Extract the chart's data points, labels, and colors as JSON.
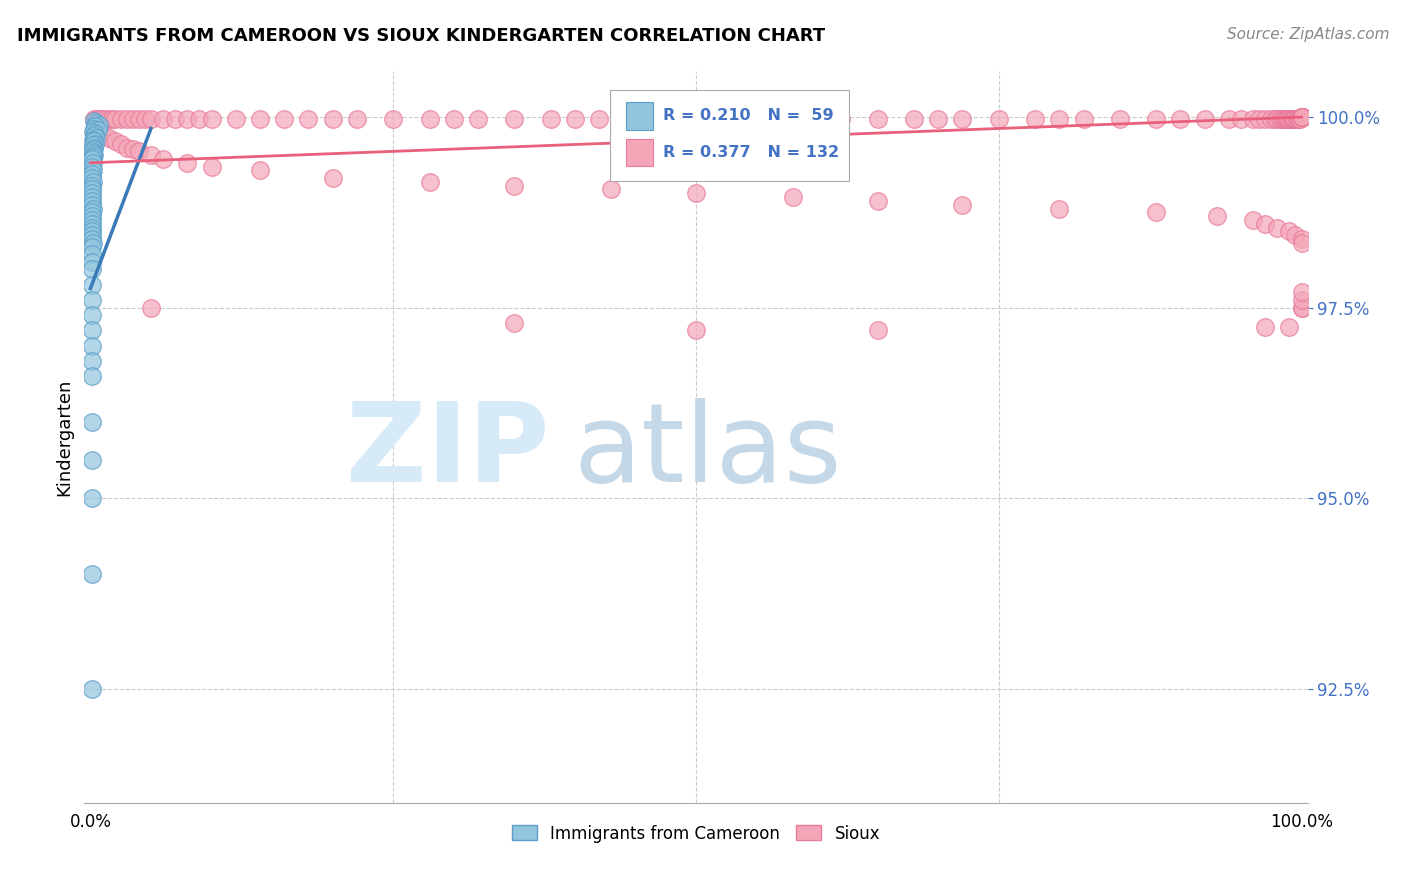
{
  "title": "IMMIGRANTS FROM CAMEROON VS SIOUX KINDERGARTEN CORRELATION CHART",
  "source": "Source: ZipAtlas.com",
  "ylabel": "Kindergarten",
  "ytick_labels": [
    "92.5%",
    "95.0%",
    "97.5%",
    "100.0%"
  ],
  "ytick_values": [
    0.925,
    0.95,
    0.975,
    1.0
  ],
  "legend_label_blue": "Immigrants from Cameroon",
  "legend_label_pink": "Sioux",
  "blue_color": "#92c5de",
  "pink_color": "#f4a6b8",
  "blue_edge_color": "#5b9ec9",
  "pink_edge_color": "#e87a9a",
  "trendline_blue_color": "#3a7ab8",
  "trendline_pink_color": "#e8607a",
  "legend_r_n_color": "#4472c4",
  "watermark_zip_color": "#d6eaf8",
  "watermark_atlas_color": "#c5d8e8",
  "blue_x": [
    0.003,
    0.005,
    0.007,
    0.004,
    0.003,
    0.006,
    0.002,
    0.004,
    0.003,
    0.005,
    0.002,
    0.003,
    0.004,
    0.002,
    0.003,
    0.002,
    0.001,
    0.002,
    0.003,
    0.002,
    0.001,
    0.002,
    0.001,
    0.002,
    0.001,
    0.001,
    0.002,
    0.001,
    0.001,
    0.001,
    0.001,
    0.001,
    0.001,
    0.002,
    0.001,
    0.001,
    0.001,
    0.001,
    0.001,
    0.001,
    0.001,
    0.001,
    0.002,
    0.001,
    0.001,
    0.001,
    0.001,
    0.001,
    0.001,
    0.001,
    0.001,
    0.001,
    0.001,
    0.001,
    0.001,
    0.001,
    0.001,
    0.001,
    0.001
  ],
  "blue_y": [
    0.9995,
    0.9992,
    0.999,
    0.9988,
    0.9985,
    0.9983,
    0.998,
    0.9978,
    0.9975,
    0.9972,
    0.997,
    0.9968,
    0.9965,
    0.9963,
    0.996,
    0.9958,
    0.9955,
    0.9953,
    0.995,
    0.9948,
    0.9945,
    0.994,
    0.9935,
    0.993,
    0.9925,
    0.992,
    0.9915,
    0.991,
    0.9905,
    0.99,
    0.9895,
    0.989,
    0.9885,
    0.988,
    0.9875,
    0.987,
    0.9865,
    0.986,
    0.9855,
    0.985,
    0.9845,
    0.984,
    0.9835,
    0.983,
    0.982,
    0.981,
    0.98,
    0.978,
    0.976,
    0.974,
    0.972,
    0.97,
    0.968,
    0.966,
    0.96,
    0.955,
    0.95,
    0.94,
    0.925
  ],
  "pink_x": [
    0.003,
    0.005,
    0.007,
    0.009,
    0.012,
    0.015,
    0.018,
    0.02,
    0.025,
    0.03,
    0.035,
    0.04,
    0.045,
    0.05,
    0.06,
    0.07,
    0.08,
    0.09,
    0.1,
    0.12,
    0.14,
    0.16,
    0.18,
    0.2,
    0.22,
    0.25,
    0.28,
    0.3,
    0.32,
    0.35,
    0.38,
    0.4,
    0.42,
    0.45,
    0.48,
    0.5,
    0.52,
    0.55,
    0.58,
    0.6,
    0.62,
    0.65,
    0.68,
    0.7,
    0.72,
    0.75,
    0.78,
    0.8,
    0.82,
    0.85,
    0.88,
    0.9,
    0.92,
    0.94,
    0.95,
    0.96,
    0.965,
    0.97,
    0.975,
    0.978,
    0.98,
    0.982,
    0.984,
    0.985,
    0.986,
    0.987,
    0.988,
    0.989,
    0.99,
    0.991,
    0.992,
    0.993,
    0.994,
    0.995,
    0.996,
    0.997,
    0.998,
    0.999,
    1.0,
    1.0,
    1.0,
    1.0,
    1.0,
    1.0,
    1.0,
    1.0,
    1.0,
    1.0,
    1.0,
    1.0,
    0.003,
    0.006,
    0.01,
    0.015,
    0.02,
    0.025,
    0.03,
    0.035,
    0.04,
    0.05,
    0.06,
    0.08,
    0.1,
    0.14,
    0.2,
    0.28,
    0.35,
    0.43,
    0.5,
    0.58,
    0.65,
    0.72,
    0.8,
    0.88,
    0.93,
    0.96,
    0.97,
    0.98,
    0.99,
    0.995,
    1.0,
    1.0,
    0.05,
    0.35,
    0.5,
    0.65,
    0.97,
    0.99,
    1.0,
    1.0,
    1.0,
    1.0
  ],
  "pink_y": [
    0.9998,
    0.9998,
    0.9998,
    0.9998,
    0.9998,
    0.9998,
    0.9998,
    0.9998,
    0.9998,
    0.9998,
    0.9998,
    0.9998,
    0.9998,
    0.9998,
    0.9998,
    0.9998,
    0.9998,
    0.9998,
    0.9998,
    0.9998,
    0.9998,
    0.9998,
    0.9998,
    0.9998,
    0.9998,
    0.9998,
    0.9998,
    0.9998,
    0.9998,
    0.9998,
    0.9998,
    0.9998,
    0.9998,
    0.9998,
    0.9998,
    0.9998,
    0.9998,
    0.9998,
    0.9998,
    0.9998,
    0.9998,
    0.9998,
    0.9998,
    0.9998,
    0.9998,
    0.9998,
    0.9998,
    0.9998,
    0.9998,
    0.9998,
    0.9998,
    0.9998,
    0.9998,
    0.9998,
    0.9998,
    0.9998,
    0.9998,
    0.9998,
    0.9998,
    0.9998,
    0.9998,
    0.9998,
    0.9998,
    0.9998,
    0.9998,
    0.9998,
    0.9998,
    0.9998,
    0.9998,
    0.9998,
    0.9998,
    0.9998,
    0.9998,
    0.9998,
    0.9998,
    0.9998,
    0.9998,
    0.9998,
    1.0,
    1.0,
    1.0,
    1.0,
    1.0,
    1.0,
    1.0,
    1.0,
    1.0,
    1.0,
    1.0,
    1.0,
    0.998,
    0.9978,
    0.9975,
    0.9972,
    0.9968,
    0.9965,
    0.996,
    0.9958,
    0.9955,
    0.995,
    0.9945,
    0.994,
    0.9935,
    0.993,
    0.992,
    0.9915,
    0.991,
    0.9905,
    0.99,
    0.9895,
    0.989,
    0.9885,
    0.988,
    0.9875,
    0.987,
    0.9865,
    0.986,
    0.9855,
    0.985,
    0.9845,
    0.984,
    0.9835,
    0.975,
    0.973,
    0.972,
    0.972,
    0.9725,
    0.9725,
    0.975,
    0.975,
    0.976,
    0.977
  ],
  "blue_trend_x": [
    0.0,
    0.05
  ],
  "blue_trend_y": [
    0.9775,
    0.9985
  ],
  "pink_trend_x": [
    0.0,
    1.0
  ],
  "pink_trend_y": [
    0.994,
    1.0
  ],
  "xlim": [
    -0.005,
    1.005
  ],
  "ylim": [
    0.91,
    1.006
  ],
  "xgrid": [
    0.25,
    0.5,
    0.75
  ],
  "ygrid": [
    0.925,
    0.95,
    0.975,
    1.0
  ]
}
